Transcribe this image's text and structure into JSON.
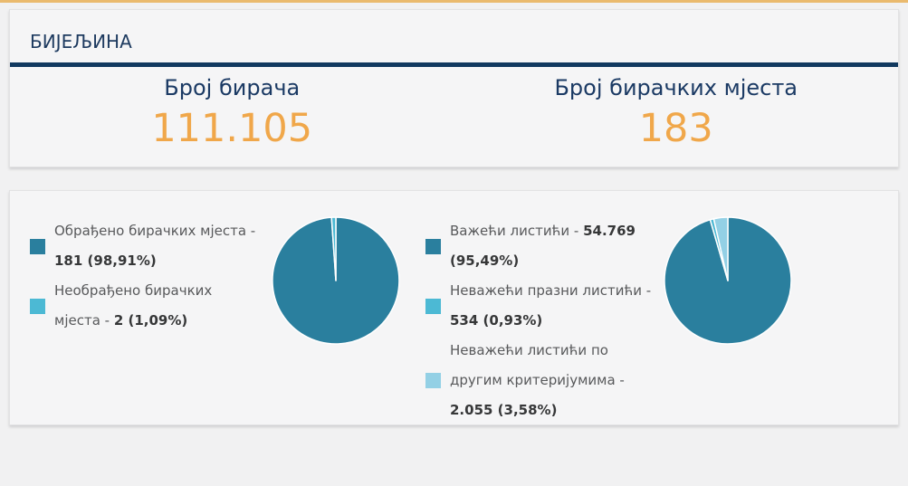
{
  "page": {
    "title": "БИЈЕЉИНА",
    "top_bar_color": "#eaba6e",
    "divider_color": "#11395f",
    "navy_color": "#1b3a64",
    "orange_color": "#f0a74a",
    "background_color": "#f1f1f2"
  },
  "summary": {
    "voters": {
      "label": "Број бирача",
      "value": "111.105"
    },
    "polling_stations": {
      "label": "Број бирачких мјеста",
      "value": "183"
    }
  },
  "chart_data": [
    {
      "type": "pie",
      "name": "polling-stations-processed",
      "legend_position": "left",
      "start_angle": "top",
      "direction": "clockwise",
      "slices": [
        {
          "name": "Обрађено бирачких мјеста",
          "value": 181,
          "pct": 98.91,
          "label_prefix": "Обрађено бирачких мјеста -\n",
          "value_display": "181 (98,91%)",
          "color": "#2a7f9e"
        },
        {
          "name": "Необрађено бирачких мјеста",
          "value": 2,
          "pct": 1.09,
          "label_prefix": "Необрађено бирачких\nмјеста - ",
          "value_display": "2 (1,09%)",
          "color": "#4cb9d4"
        }
      ]
    },
    {
      "type": "pie",
      "name": "ballots-validity",
      "legend_position": "left",
      "start_angle": "top",
      "direction": "clockwise",
      "slices": [
        {
          "name": "Важећи листићи",
          "value": 54769,
          "pct": 95.49,
          "label_prefix": "Важећи листићи - ",
          "value_display": "54.769\n(95,49%)",
          "color": "#2a7f9e"
        },
        {
          "name": "Неважећи празни листићи",
          "value": 534,
          "pct": 0.93,
          "label_prefix": "Неважећи празни листићи -\n",
          "value_display": "534 (0,93%)",
          "color": "#4cb9d4"
        },
        {
          "name": "Неважећи листићи по другим критеријумима",
          "value": 2055,
          "pct": 3.58,
          "label_prefix": "Неважећи листићи по\nдругим критеријумима -\n",
          "value_display": "2.055 (3,58%)",
          "color": "#93d0e5"
        }
      ]
    }
  ]
}
